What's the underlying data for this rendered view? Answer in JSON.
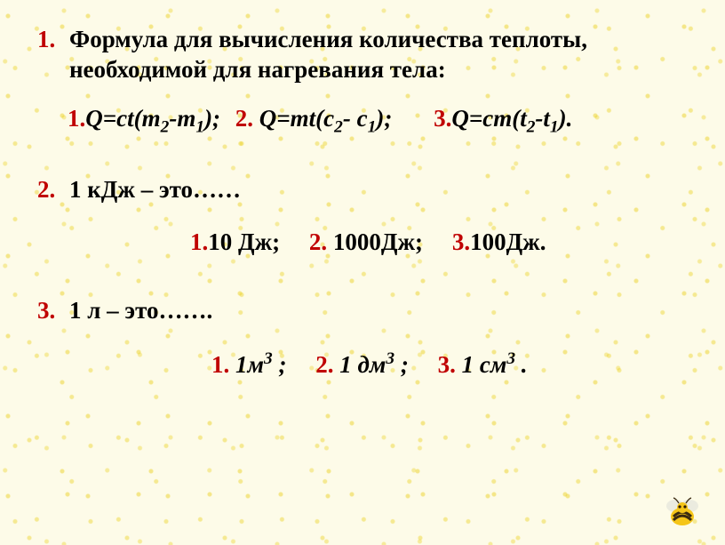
{
  "colors": {
    "question_number": "#c00000",
    "option_number": "#c00000",
    "text": "#000000",
    "background": "#fdfbe8",
    "speckle": "#ebd228"
  },
  "typography": {
    "family": "Times New Roman",
    "size_pt": 20,
    "weight": "bold",
    "options_italic_q1_q3": true
  },
  "questions": [
    {
      "num": "1.",
      "text": "Формула для вычисления количества теплоты, необходимой для нагревания тела:",
      "options": [
        {
          "num": "1.",
          "html": "Q=ct(m<sub>2</sub>-m<sub>1</sub>);",
          "italic": true
        },
        {
          "num": "2.",
          "html": "Q=mt(c<sub>2</sub>- c<sub>1</sub>);",
          "italic": true
        },
        {
          "num": "3.",
          "html": "Q=cm(t<sub>2</sub>-t<sub>1</sub>).",
          "italic": true
        }
      ]
    },
    {
      "num": "2.",
      "text": "1 кДж – это……",
      "options": [
        {
          "num": "1.",
          "html": "10 Дж;",
          "italic": false
        },
        {
          "num": "2.",
          "html": "1000Дж;",
          "italic": false
        },
        {
          "num": "3.",
          "html": "100Дж.",
          "italic": false
        }
      ]
    },
    {
      "num": "3.",
      "text": "1 л – это…….",
      "options": [
        {
          "num": "1.",
          "html": "1м<sup>3</sup> ;",
          "italic": true
        },
        {
          "num": "2.",
          "html": "1 дм<sup>3</sup> ;",
          "italic": true
        },
        {
          "num": "3.",
          "html": "1 см<sup>3</sup> .",
          "italic": true
        }
      ]
    }
  ]
}
